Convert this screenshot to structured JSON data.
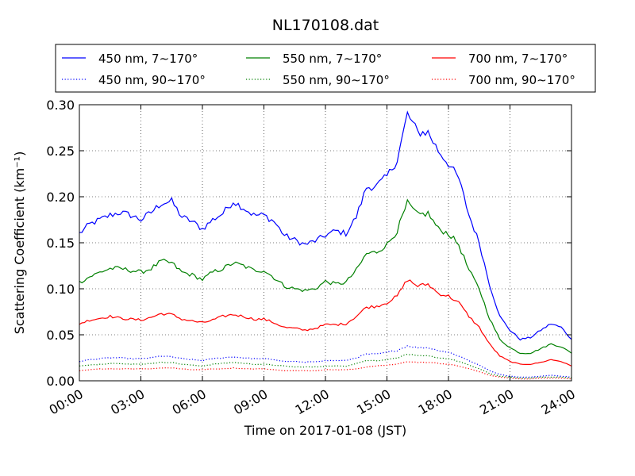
{
  "chart_data": {
    "type": "line",
    "title": "NL170108.dat",
    "xlabel": "Time on 2017-01-08 (JST)",
    "ylabel": "Scattering Coefficient (km⁻¹)",
    "xlim": [
      0,
      24
    ],
    "ylim": [
      0,
      0.3
    ],
    "x_ticks": [
      "00:00",
      "03:00",
      "06:00",
      "09:00",
      "12:00",
      "15:00",
      "18:00",
      "21:00",
      "24:00"
    ],
    "y_ticks": [
      "0.00",
      "0.05",
      "0.10",
      "0.15",
      "0.20",
      "0.25",
      "0.30"
    ],
    "grid": true,
    "legend_position": "top",
    "x": [
      0,
      0.5,
      1,
      1.5,
      2,
      2.5,
      3,
      3.5,
      4,
      4.5,
      5,
      5.5,
      6,
      6.5,
      7,
      7.5,
      8,
      8.5,
      9,
      9.5,
      10,
      10.5,
      11,
      11.5,
      12,
      12.5,
      13,
      13.5,
      14,
      14.5,
      15,
      15.5,
      16,
      16.5,
      17,
      17.5,
      18,
      18.5,
      19,
      19.5,
      20,
      20.5,
      21,
      21.5,
      22,
      22.5,
      23,
      23.5,
      24
    ],
    "series": [
      {
        "name": "450 nm, 7∼170°",
        "color": "#0000ff",
        "style": "solid",
        "values": [
          0.16,
          0.17,
          0.175,
          0.18,
          0.183,
          0.18,
          0.175,
          0.183,
          0.193,
          0.195,
          0.178,
          0.173,
          0.165,
          0.175,
          0.182,
          0.195,
          0.188,
          0.18,
          0.18,
          0.173,
          0.158,
          0.153,
          0.148,
          0.152,
          0.158,
          0.163,
          0.16,
          0.178,
          0.21,
          0.212,
          0.222,
          0.24,
          0.29,
          0.27,
          0.27,
          0.25,
          0.236,
          0.22,
          0.18,
          0.15,
          0.105,
          0.07,
          0.055,
          0.045,
          0.047,
          0.055,
          0.062,
          0.058,
          0.045
        ]
      },
      {
        "name": "550 nm, 7∼170°",
        "color": "#008000",
        "style": "solid",
        "values": [
          0.107,
          0.113,
          0.118,
          0.122,
          0.122,
          0.12,
          0.118,
          0.122,
          0.13,
          0.128,
          0.118,
          0.115,
          0.11,
          0.118,
          0.122,
          0.128,
          0.125,
          0.12,
          0.12,
          0.112,
          0.103,
          0.1,
          0.098,
          0.1,
          0.108,
          0.105,
          0.107,
          0.12,
          0.138,
          0.14,
          0.148,
          0.163,
          0.193,
          0.18,
          0.182,
          0.165,
          0.16,
          0.148,
          0.12,
          0.1,
          0.068,
          0.045,
          0.036,
          0.03,
          0.03,
          0.035,
          0.04,
          0.037,
          0.03
        ]
      },
      {
        "name": "700 nm, 7∼170°",
        "color": "#ff0000",
        "style": "solid",
        "values": [
          0.062,
          0.066,
          0.068,
          0.07,
          0.068,
          0.067,
          0.066,
          0.069,
          0.073,
          0.072,
          0.067,
          0.065,
          0.063,
          0.066,
          0.07,
          0.072,
          0.07,
          0.067,
          0.067,
          0.063,
          0.058,
          0.057,
          0.055,
          0.057,
          0.061,
          0.061,
          0.062,
          0.07,
          0.08,
          0.081,
          0.085,
          0.092,
          0.11,
          0.103,
          0.105,
          0.095,
          0.092,
          0.085,
          0.07,
          0.058,
          0.04,
          0.027,
          0.021,
          0.018,
          0.018,
          0.02,
          0.023,
          0.021,
          0.016
        ]
      },
      {
        "name": "450 nm, 90∼170°",
        "color": "#0000ff",
        "style": "dotted",
        "values": [
          0.021,
          0.023,
          0.024,
          0.025,
          0.025,
          0.024,
          0.024,
          0.025,
          0.027,
          0.026,
          0.024,
          0.023,
          0.022,
          0.024,
          0.025,
          0.026,
          0.025,
          0.024,
          0.024,
          0.023,
          0.021,
          0.021,
          0.02,
          0.021,
          0.022,
          0.022,
          0.022,
          0.025,
          0.029,
          0.029,
          0.031,
          0.033,
          0.038,
          0.036,
          0.036,
          0.033,
          0.031,
          0.027,
          0.022,
          0.017,
          0.011,
          0.007,
          0.005,
          0.004,
          0.004,
          0.005,
          0.006,
          0.005,
          0.004
        ]
      },
      {
        "name": "550 nm, 90∼170°",
        "color": "#008000",
        "style": "dotted",
        "values": [
          0.016,
          0.017,
          0.018,
          0.019,
          0.019,
          0.018,
          0.018,
          0.019,
          0.02,
          0.02,
          0.018,
          0.017,
          0.016,
          0.018,
          0.019,
          0.02,
          0.019,
          0.018,
          0.018,
          0.017,
          0.016,
          0.015,
          0.015,
          0.015,
          0.016,
          0.016,
          0.016,
          0.019,
          0.022,
          0.022,
          0.023,
          0.025,
          0.029,
          0.027,
          0.027,
          0.025,
          0.024,
          0.021,
          0.017,
          0.013,
          0.008,
          0.005,
          0.004,
          0.003,
          0.003,
          0.004,
          0.004,
          0.004,
          0.003
        ]
      },
      {
        "name": "700 nm, 90∼170°",
        "color": "#ff0000",
        "style": "dotted",
        "values": [
          0.011,
          0.012,
          0.013,
          0.013,
          0.013,
          0.013,
          0.013,
          0.013,
          0.014,
          0.014,
          0.013,
          0.012,
          0.012,
          0.013,
          0.013,
          0.014,
          0.013,
          0.013,
          0.013,
          0.012,
          0.011,
          0.011,
          0.011,
          0.011,
          0.012,
          0.012,
          0.012,
          0.013,
          0.015,
          0.016,
          0.017,
          0.018,
          0.021,
          0.02,
          0.02,
          0.019,
          0.018,
          0.016,
          0.013,
          0.01,
          0.006,
          0.004,
          0.003,
          0.002,
          0.002,
          0.003,
          0.003,
          0.003,
          0.002
        ]
      }
    ]
  }
}
